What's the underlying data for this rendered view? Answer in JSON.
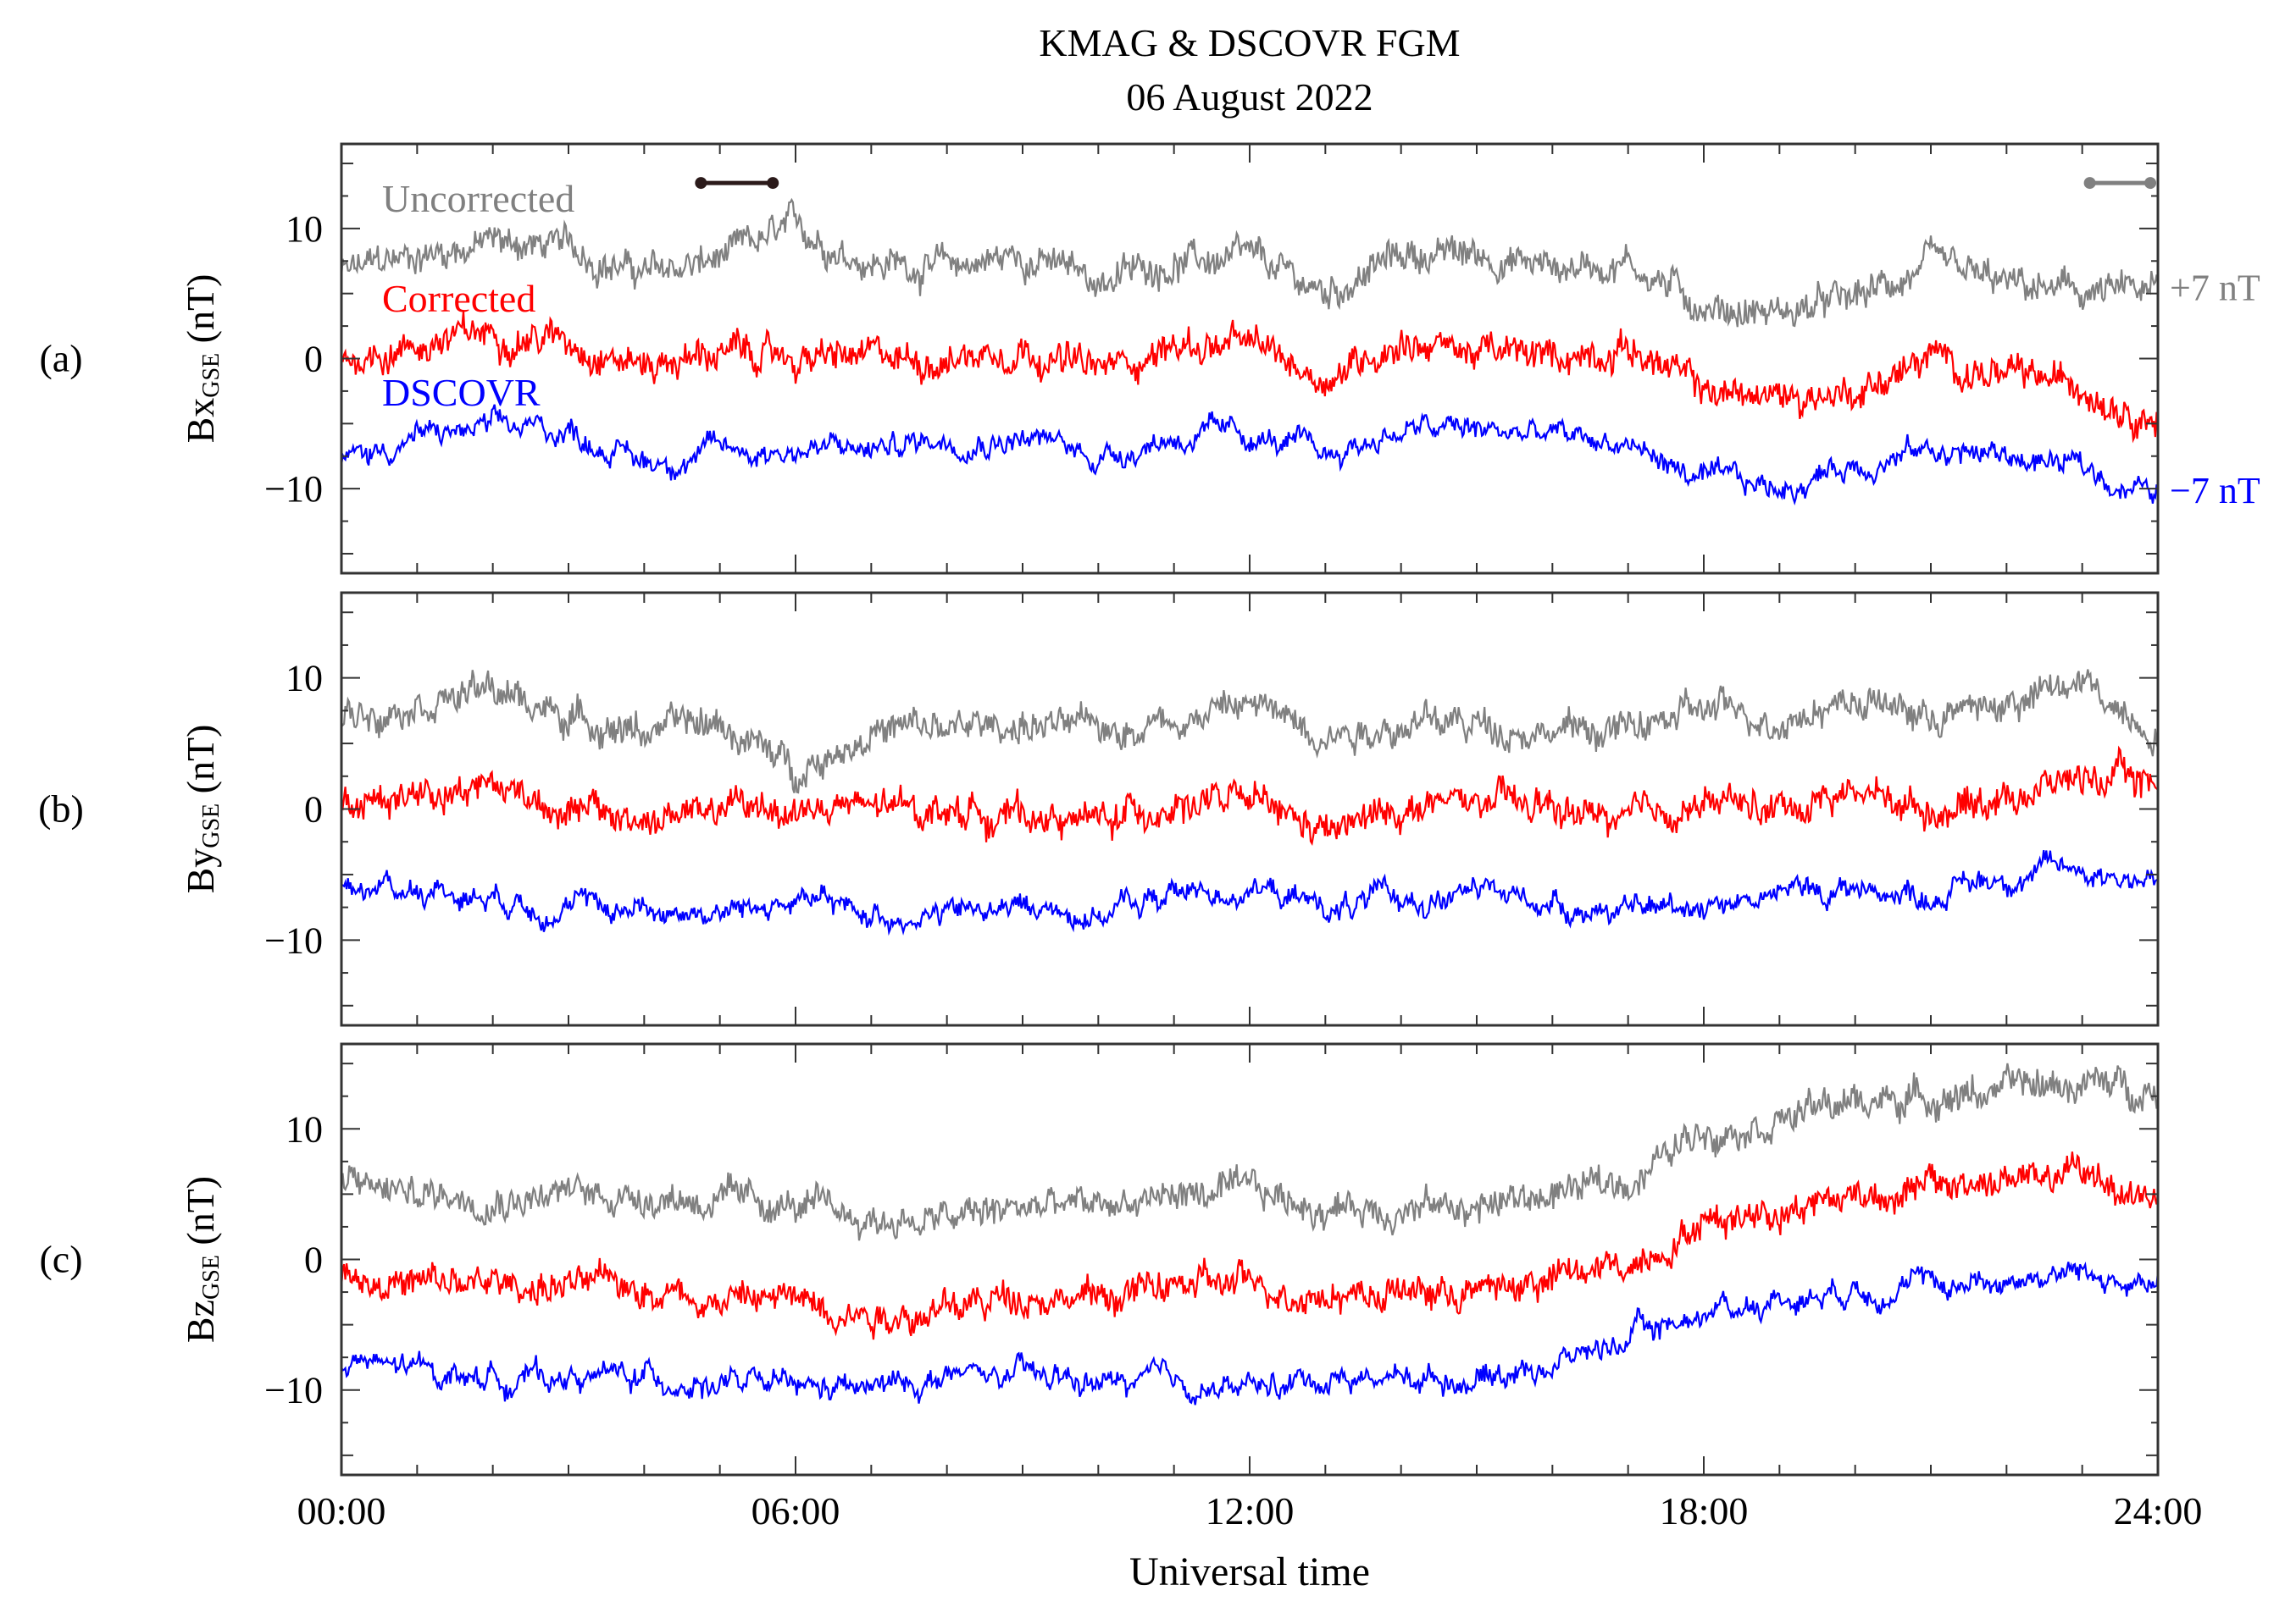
{
  "chart_data": {
    "type": "line",
    "title": "KMAG & DSCOVR FGM",
    "subtitle": "06 August 2022",
    "xlabel": "Universal time",
    "xlim": [
      0,
      24
    ],
    "x_tick_labels": [
      "00:00",
      "06:00",
      "12:00",
      "18:00",
      "24:00"
    ],
    "x_tick_values": [
      0,
      6,
      12,
      18,
      24
    ],
    "x_hours": [
      0,
      1,
      2,
      3,
      4,
      5,
      6,
      7,
      8,
      9,
      10,
      11,
      12,
      13,
      14,
      15,
      16,
      17,
      18,
      19,
      20,
      21,
      22,
      23,
      24
    ],
    "colors": {
      "Uncorrected": "#808080",
      "Corrected": "#ff0000",
      "DSCOVR": "#0000ff",
      "interval_bar": "#2b1a1a"
    },
    "legend": [
      "Uncorrected",
      "Corrected",
      "DSCOVR"
    ],
    "offset_labels": {
      "plus": "+7 nT",
      "minus": "−7 nT"
    },
    "panels": [
      {
        "label": "(a)",
        "ylabel_main": "Bx",
        "ylabel_sub": "GSE",
        "ylabel_unit": " (nT)",
        "ylim": [
          -16.5,
          16.5
        ],
        "y_tick_values": [
          10,
          0,
          -10
        ],
        "y_tick_labels": [
          "10",
          "0",
          "−10"
        ],
        "intervals": [
          {
            "start": 4.75,
            "end": 5.7,
            "value": 13.5,
            "color": "#2b1a1a"
          },
          {
            "start": 23.1,
            "end": 23.9,
            "value": 13.5,
            "color": "#808080"
          }
        ],
        "series": [
          {
            "name": "Uncorrected",
            "values": [
              6.5,
              8,
              9,
              8.5,
              6.5,
              7.5,
              10,
              7.5,
              7,
              8,
              6,
              7.5,
              7.5,
              5,
              8,
              8,
              7,
              7.5,
              4,
              3.5,
              4.5,
              7,
              5.5,
              5,
              5
            ]
          },
          {
            "name": "Corrected",
            "values": [
              0,
              1,
              2,
              1.5,
              -0.5,
              0.5,
              0,
              0,
              0,
              1,
              -1,
              1,
              1,
              -1.5,
              1.5,
              0.5,
              0,
              1,
              -2.5,
              -3,
              -2.5,
              0,
              -1.5,
              -2,
              -4.5
            ]
          },
          {
            "name": "DSCOVR",
            "values": [
              -8,
              -6,
              -5.5,
              -5.5,
              -8,
              -7,
              -7,
              -7,
              -6,
              -6,
              -7.5,
              -6,
              -6,
              -7.5,
              -5.5,
              -5.5,
              -6,
              -6.5,
              -9.5,
              -10,
              -8,
              -7,
              -7.5,
              -8.5,
              -10.5
            ]
          }
        ]
      },
      {
        "label": "(b)",
        "ylabel_main": "By",
        "ylabel_sub": "GSE",
        "ylabel_unit": " (nT)",
        "ylim": [
          -16.5,
          16.5
        ],
        "y_tick_values": [
          10,
          0,
          -10
        ],
        "y_tick_labels": [
          "10",
          "0",
          "−10"
        ],
        "intervals": [],
        "series": [
          {
            "name": "Uncorrected",
            "values": [
              7,
              8.5,
              9,
              7,
              6,
              6.5,
              3,
              6,
              6,
              6.5,
              6,
              7,
              8,
              6,
              6.5,
              6.5,
              6,
              6,
              7.5,
              7,
              8.5,
              7,
              8,
              9.5,
              6
            ]
          },
          {
            "name": "Corrected",
            "values": [
              0,
              1.5,
              2,
              0,
              -1,
              0,
              0,
              0,
              0,
              -0.5,
              -1,
              0.5,
              0.5,
              -2,
              0,
              0.5,
              0,
              -1,
              0.5,
              0,
              1.5,
              0,
              1,
              2.5,
              2
            ]
          },
          {
            "name": "DSCOVR",
            "values": [
              -6,
              -6,
              -6.5,
              -7.5,
              -7.5,
              -8,
              -7,
              -8,
              -8,
              -7.5,
              -8,
              -6.5,
              -6,
              -7.5,
              -7,
              -6.5,
              -7,
              -8,
              -7,
              -6.5,
              -6,
              -6.5,
              -5,
              -4.5,
              -5.5
            ]
          }
        ]
      },
      {
        "label": "(c)",
        "ylabel_main": "Bz",
        "ylabel_sub": "GSE",
        "ylabel_unit": " (nT)",
        "ylim": [
          -16.5,
          16.5
        ],
        "y_tick_values": [
          10,
          0,
          -10
        ],
        "y_tick_labels": [
          "10",
          "0",
          "−10"
        ],
        "intervals": [],
        "series": [
          {
            "name": "Uncorrected",
            "values": [
              6,
              5,
              5,
              5,
              5,
              4.5,
              4,
              3,
              3,
              4,
              4,
              5,
              5,
              4,
              4,
              4,
              5,
              6,
              10,
              11,
              12,
              12.5,
              13,
              13.5,
              13
            ]
          },
          {
            "name": "Corrected",
            "values": [
              -1,
              -2,
              -2,
              -2,
              -2,
              -3,
              -3,
              -4,
              -4,
              -2.5,
              -3,
              -2,
              -2,
              -2.5,
              -2.5,
              -2.5,
              -1.5,
              -0.5,
              3,
              4,
              5,
              5.5,
              6,
              6.5,
              4.5
            ]
          },
          {
            "name": "DSCOVR",
            "values": [
              -8,
              -8.5,
              -9,
              -9,
              -9,
              -9.5,
              -10,
              -10,
              -9,
              -9,
              -9.5,
              -9.5,
              -10,
              -9,
              -9,
              -9,
              -8,
              -6,
              -4,
              -3,
              -2,
              -2,
              -1.5,
              -1,
              -2.5
            ]
          }
        ]
      }
    ]
  }
}
